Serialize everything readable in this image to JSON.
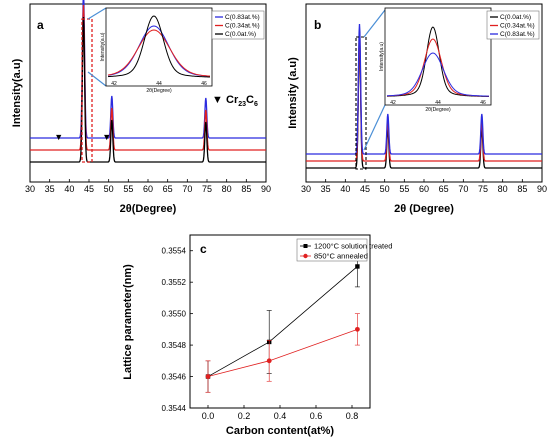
{
  "chart_data": [
    {
      "panel": "a",
      "type": "line",
      "xlabel": "2θ(Degree)",
      "ylabel": "Intensity(a.u)",
      "xlim": [
        30,
        90
      ],
      "x_ticks": [
        "30",
        "35",
        "40",
        "45",
        "50",
        "55",
        "60",
        "65",
        "70",
        "75",
        "80",
        "85",
        "90"
      ],
      "series": [
        {
          "name": "C(0.83at.%)",
          "color": "#2b2bdf",
          "offset": 2
        },
        {
          "name": "C(0.34at.%)",
          "color": "#e02020",
          "offset": 1
        },
        {
          "name": "C(0.0at.%)",
          "color": "#000000",
          "offset": 0
        }
      ],
      "peaks_2theta": [
        43.6,
        50.8,
        74.7
      ],
      "annotation": {
        "marker": "▼",
        "label": "Cr",
        "sub1": "23",
        "mid": "C",
        "sub2": "6"
      },
      "marker_positions_2theta": [
        37.3,
        49.5
      ],
      "inset": {
        "ylabel": "Intensity(a.u)",
        "xlabel": "2θ(Degree)",
        "x_ticks": [
          "42",
          "44",
          "46"
        ]
      }
    },
    {
      "panel": "b",
      "type": "line",
      "xlabel": "2θ (Degree)",
      "ylabel": "Intensity (a.u)",
      "xlim": [
        30,
        90
      ],
      "x_ticks": [
        "30",
        "35",
        "40",
        "45",
        "50",
        "55",
        "60",
        "65",
        "70",
        "75",
        "80",
        "85",
        "90"
      ],
      "series": [
        {
          "name": "C(0.0at.%)",
          "color": "#000000",
          "offset": 0
        },
        {
          "name": "C(0.34at.%)",
          "color": "#e02020",
          "offset": 1
        },
        {
          "name": "C(0.83at.%)",
          "color": "#2b2bdf",
          "offset": 2
        }
      ],
      "peaks_2theta": [
        43.6,
        50.8,
        74.7
      ],
      "inset": {
        "ylabel": "Intensity(a.u)",
        "xlabel": "2θ(Degree)",
        "x_ticks": [
          "42",
          "44",
          "46"
        ]
      }
    },
    {
      "panel": "c",
      "type": "line",
      "xlabel": "Carbon content(at%)",
      "ylabel": "Lattice parameter(nm)",
      "xlim": [
        -0.1,
        0.9
      ],
      "ylim": [
        0.3544,
        0.3555
      ],
      "x_ticks": [
        0.0,
        0.2,
        0.4,
        0.6,
        0.8
      ],
      "x_tick_labels": [
        "0.0",
        "0.2",
        "0.4",
        "0.6",
        "0.8"
      ],
      "y_ticks": [
        0.3544,
        0.3546,
        0.3548,
        0.355,
        0.3552,
        0.3554
      ],
      "y_tick_labels": [
        "0.3544",
        "0.3546",
        "0.3548",
        "0.3550",
        "0.3552",
        "0.3554"
      ],
      "series": [
        {
          "name": "1200°C solution treated",
          "color": "#000000",
          "marker": "square",
          "x": [
            0.0,
            0.34,
            0.83
          ],
          "y": [
            0.3546,
            0.35482,
            0.3553
          ],
          "err": [
            0.0001,
            0.0002,
            0.00013
          ]
        },
        {
          "name": "850°C annealed",
          "color": "#e02020",
          "marker": "circle",
          "x": [
            0.0,
            0.34,
            0.83
          ],
          "y": [
            0.3546,
            0.3547,
            0.3549
          ],
          "err": [
            0.0001,
            0.00013,
            0.0001
          ]
        }
      ]
    }
  ]
}
